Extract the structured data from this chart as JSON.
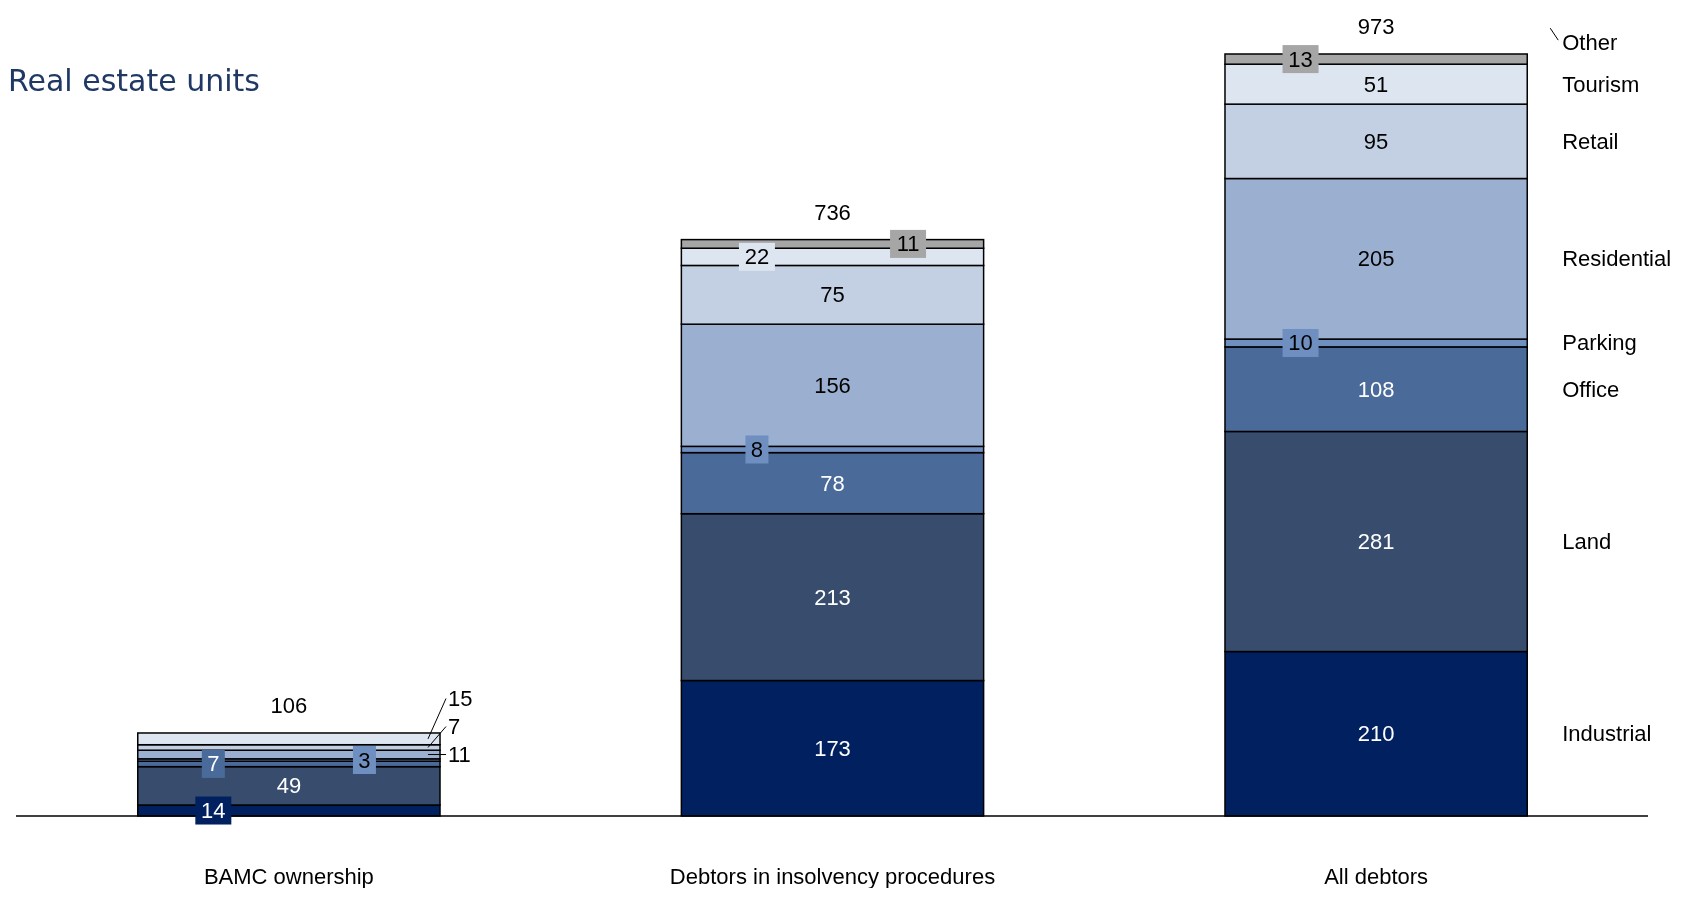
{
  "chart_data": {
    "type": "bar",
    "title": "Real estate units",
    "stacked": true,
    "data_labels": true,
    "legend": "right",
    "categories": [
      "BAMC ownership",
      "Debtors in insolvency procedures",
      "All debtors"
    ],
    "series": [
      {
        "name": "Industrial",
        "color": "#002060",
        "values": [
          14,
          173,
          210
        ]
      },
      {
        "name": "Land",
        "color": "#384d6e",
        "values": [
          49,
          213,
          281
        ]
      },
      {
        "name": "Office",
        "color": "#4a6a9a",
        "values": [
          7,
          78,
          108
        ]
      },
      {
        "name": "Parking",
        "color": "#6f8fc0",
        "values": [
          3,
          8,
          10
        ]
      },
      {
        "name": "Residential",
        "color": "#9bb0d0",
        "values": [
          11,
          156,
          205
        ]
      },
      {
        "name": "Retail",
        "color": "#c3cfe2",
        "values": [
          7,
          75,
          95
        ]
      },
      {
        "name": "Tourism",
        "color": "#dde5f0",
        "values": [
          15,
          22,
          51
        ]
      },
      {
        "name": "Other",
        "color": "#a6a6a6",
        "values": [
          null,
          11,
          13
        ]
      }
    ],
    "totals": [
      "106",
      "736",
      "973"
    ]
  }
}
